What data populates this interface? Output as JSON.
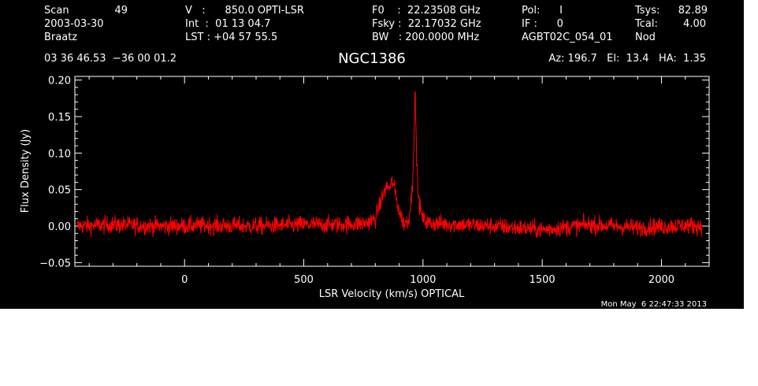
{
  "header": {
    "col1": {
      "scan_label": "Scan",
      "scan_value": "49",
      "date": "2003-03-30",
      "observer": "Braatz"
    },
    "col2": {
      "v_line": "V   :      850.0 OPTI-LSR",
      "int_line": "Int  :  01 13 04.7",
      "lst_line": "LST : +04 57 55.5"
    },
    "col3": {
      "f0_line": "F0    :  22.23508 GHz",
      "fsky_line": "Fsky :  22.17032 GHz",
      "bw_line": "BW   : 200.0000 MHz"
    },
    "col4": {
      "pol_line": "Pol:      I",
      "if_line": "IF :      0",
      "project": "AGBT02C_054_01"
    },
    "col5": {
      "tsys_label": "Tsys:",
      "tsys_value": "82.89",
      "tcal_label": "Tcal:",
      "tcal_value": "4.00",
      "mode": "Nod"
    },
    "coords": "03 36 46.53  −36 00 01.2",
    "pointing": "Az: 196.7   El:  13.4   HA:  1.35"
  },
  "timestamp": "Mon May  6 22:47:33 2013",
  "colors": {
    "background": "#000000",
    "foreground": "#ffffff",
    "trace": "#ff0000"
  },
  "chart_data": {
    "type": "line",
    "title": "NGC1386",
    "xlabel": "LSR Velocity (km/s) OPTICAL",
    "ylabel": "Flux Density (Jy)",
    "xlim": [
      -460,
      2200
    ],
    "ylim": [
      -0.055,
      0.205
    ],
    "x_ticks": [
      0,
      500,
      1000,
      1500,
      2000
    ],
    "x_tick_labels": [
      "0",
      "500",
      "1000",
      "1500",
      "2000"
    ],
    "y_ticks": [
      -0.05,
      0.0,
      0.05,
      0.1,
      0.15,
      0.2
    ],
    "y_tick_labels": [
      "−0.05",
      "0.00",
      "0.05",
      "0.10",
      "0.15",
      "0.20"
    ],
    "noise_rms": 0.006,
    "series": [
      {
        "color": "#ff0000",
        "x": [
          -450,
          -300,
          -100,
          100,
          300,
          500,
          650,
          760,
          800,
          820,
          835,
          850,
          862,
          872,
          885,
          900,
          920,
          940,
          955,
          962,
          967,
          972,
          980,
          995,
          1020,
          1100,
          1300,
          1500,
          1700,
          1900,
          2100,
          2170
        ],
        "y": [
          0.0,
          0.002,
          0.0,
          0.001,
          0.0,
          0.002,
          0.002,
          0.004,
          0.01,
          0.03,
          0.045,
          0.055,
          0.052,
          0.062,
          0.045,
          0.02,
          0.003,
          0.008,
          0.05,
          0.12,
          0.185,
          0.11,
          0.04,
          0.012,
          0.004,
          0.003,
          0.0,
          -0.005,
          0.002,
          -0.002,
          0.001,
          0.0
        ]
      }
    ]
  }
}
